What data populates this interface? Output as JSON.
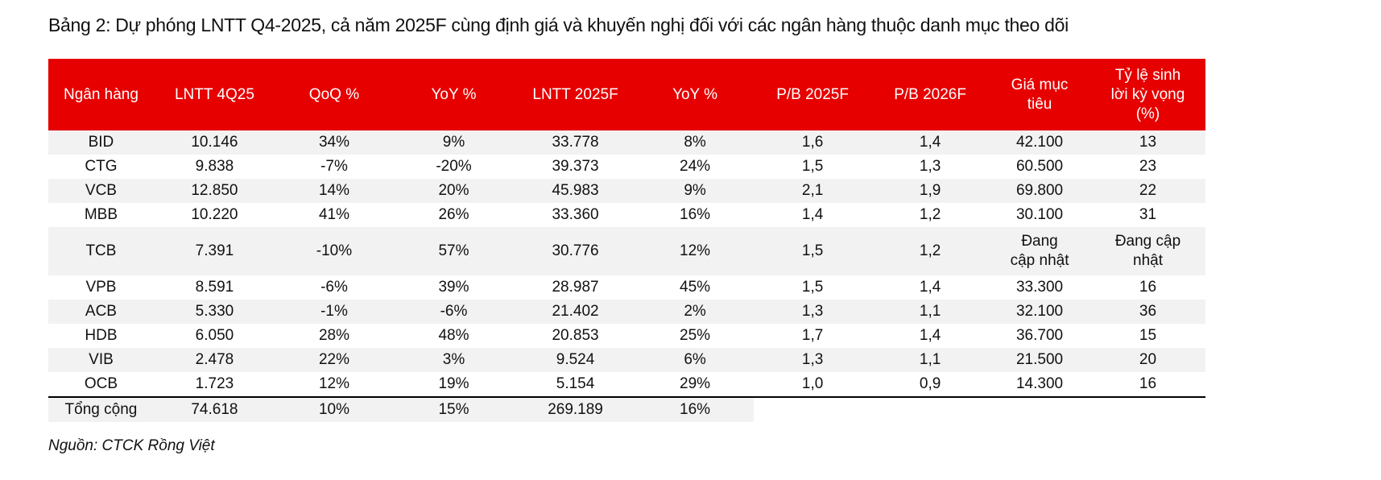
{
  "title": "Bảng 2: Dự phóng LNTT Q4-2025, cả năm 2025F cùng định giá và khuyến nghị đối với các ngân hàng thuộc danh mục theo dõi",
  "table": {
    "headers": [
      "Ngân hàng",
      "LNTT 4Q25",
      "QoQ %",
      "YoY %",
      "LNTT 2025F",
      "YoY %",
      "P/B 2025F",
      "P/B 2026F",
      "Giá mục tiêu",
      "Tỷ lệ sinh lời kỳ vọng (%)"
    ],
    "rows": [
      [
        "BID",
        "10.146",
        "34%",
        "9%",
        "33.778",
        "8%",
        "1,6",
        "1,4",
        "42.100",
        "13"
      ],
      [
        "CTG",
        "9.838",
        "-7%",
        "-20%",
        "39.373",
        "24%",
        "1,5",
        "1,3",
        "60.500",
        "23"
      ],
      [
        "VCB",
        "12.850",
        "14%",
        "20%",
        "45.983",
        "9%",
        "2,1",
        "1,9",
        "69.800",
        "22"
      ],
      [
        "MBB",
        "10.220",
        "41%",
        "26%",
        "33.360",
        "16%",
        "1,4",
        "1,2",
        "30.100",
        "31"
      ],
      [
        "TCB",
        "7.391",
        "-10%",
        "57%",
        "30.776",
        "12%",
        "1,5",
        "1,2",
        "Đang cập nhật",
        "Đang cập nhật"
      ],
      [
        "VPB",
        "8.591",
        "-6%",
        "39%",
        "28.987",
        "45%",
        "1,5",
        "1,4",
        "33.300",
        "16"
      ],
      [
        "ACB",
        "5.330",
        "-1%",
        "-6%",
        "21.402",
        "2%",
        "1,3",
        "1,1",
        "32.100",
        "36"
      ],
      [
        "HDB",
        "6.050",
        "28%",
        "48%",
        "20.853",
        "25%",
        "1,7",
        "1,4",
        "36.700",
        "15"
      ],
      [
        "VIB",
        "2.478",
        "22%",
        "3%",
        "9.524",
        "6%",
        "1,3",
        "1,1",
        "21.500",
        "20"
      ],
      [
        "OCB",
        "1.723",
        "12%",
        "19%",
        "5.154",
        "29%",
        "1,0",
        "0,9",
        "14.300",
        "16"
      ]
    ],
    "total": [
      "Tổng cộng",
      "74.618",
      "10%",
      "15%",
      "269.189",
      "16%",
      "",
      "",
      "",
      ""
    ]
  },
  "source": "Nguồn: CTCK Rồng Việt",
  "colors": {
    "header_bg": "#e60000",
    "stripe": "#f2f2f2"
  }
}
